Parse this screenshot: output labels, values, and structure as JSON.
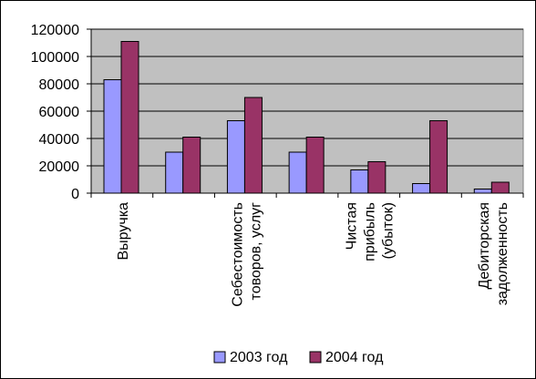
{
  "chart_data": {
    "type": "bar",
    "categories": [
      [
        "Выручка"
      ],
      [
        ""
      ],
      [
        "Себестоимость",
        "товоров, услуг"
      ],
      [
        ""
      ],
      [
        "Чистая",
        "прибыль",
        "(убыток)"
      ],
      [
        ""
      ],
      [
        "Дебиторская",
        "задолженность"
      ]
    ],
    "series": [
      {
        "name": "2003 год",
        "color": "#9999ff",
        "values": [
          83000,
          30000,
          53000,
          30000,
          17000,
          7000,
          3000
        ]
      },
      {
        "name": "2004 год",
        "color": "#993366",
        "values": [
          111000,
          41000,
          70000,
          41000,
          23000,
          53000,
          8000
        ]
      }
    ],
    "yticks": [
      "0",
      "20000",
      "40000",
      "60000",
      "80000",
      "100000",
      "120000"
    ],
    "ylim": [
      0,
      120000
    ],
    "plot_background": "#c0c0c0",
    "grid": true,
    "legend": "bottom"
  }
}
